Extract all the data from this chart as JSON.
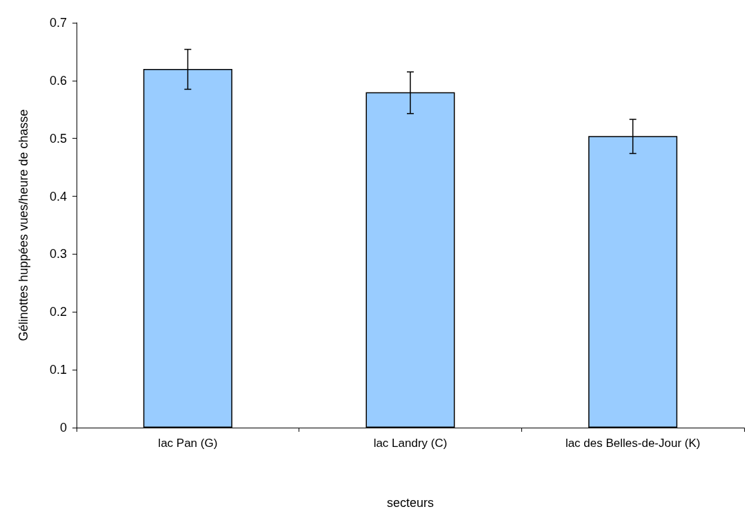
{
  "chart_data": {
    "type": "bar",
    "xlabel": "secteurs",
    "ylabel": "Gélinottes huppées vues/heure de chasse",
    "categories": [
      "lac Pan (G)",
      "lac Landry (C)",
      "lac des Belles-de-Jour (K)"
    ],
    "values": [
      0.62,
      0.58,
      0.504
    ],
    "color": "#99ccff",
    "errors": [
      [
        0.585,
        0.654
      ],
      [
        0.543,
        0.615
      ],
      [
        0.474,
        0.533
      ]
    ],
    "ylim": [
      0,
      0.7
    ],
    "yticks": [
      0,
      0.1,
      0.2,
      0.3,
      0.4,
      0.5,
      0.6,
      0.7
    ],
    "grid": false
  }
}
